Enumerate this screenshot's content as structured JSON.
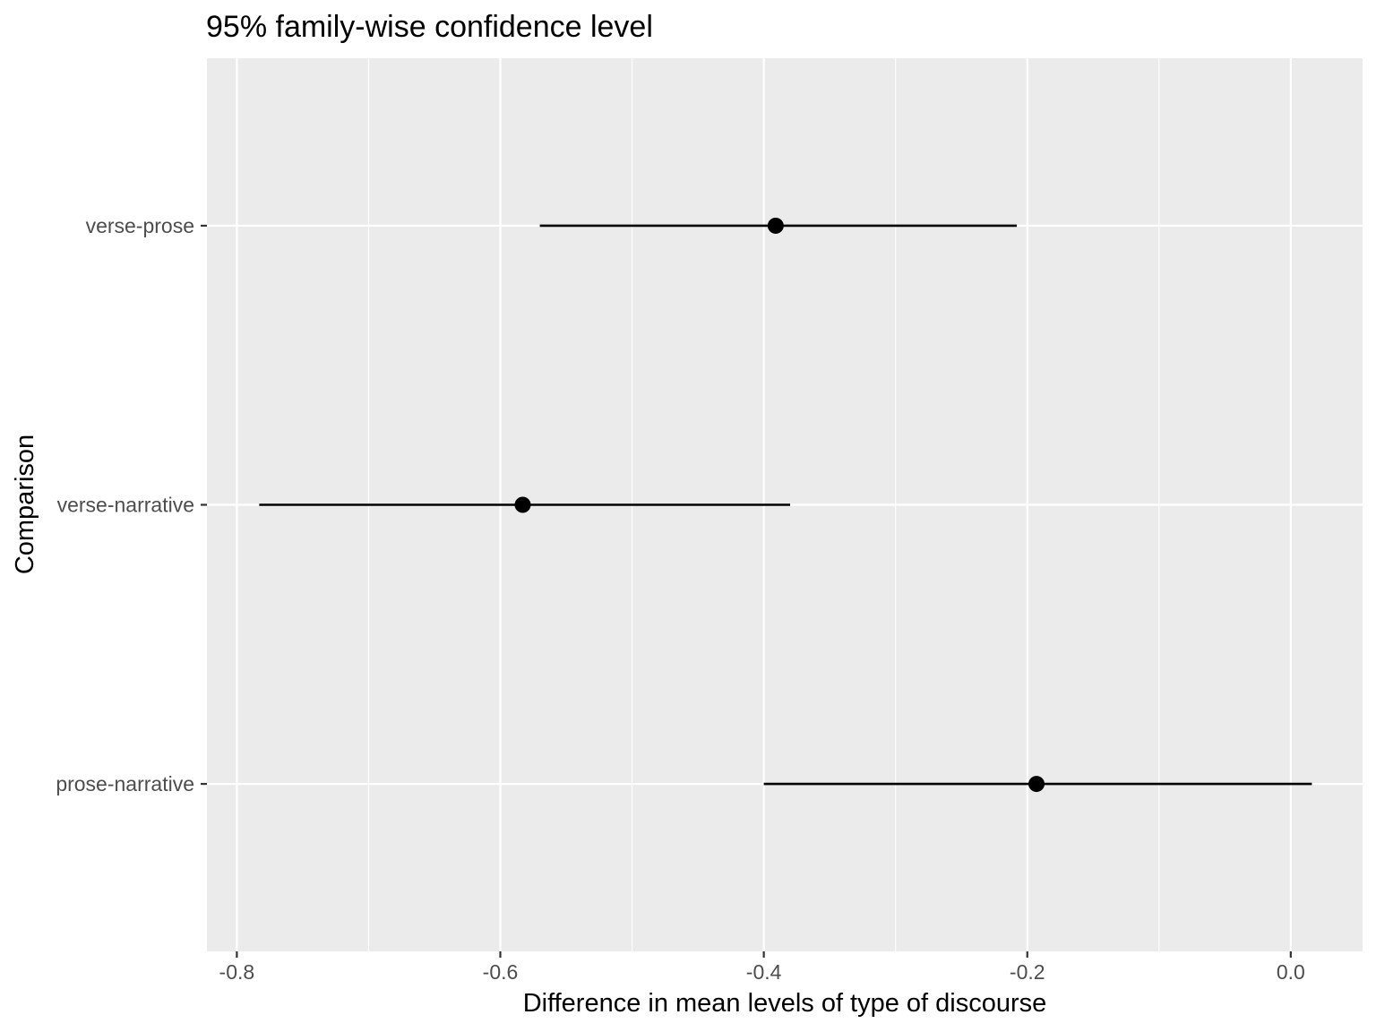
{
  "chart_data": {
    "type": "scatter",
    "title": "95% family-wise confidence level",
    "xlabel": "Difference in mean levels of type of discourse",
    "ylabel": "Comparison",
    "xlim": [
      -0.8227,
      0.0545
    ],
    "x_ticks": [
      -0.8,
      -0.6,
      -0.4,
      -0.2,
      0.0
    ],
    "x_tick_labels": [
      "-0.8",
      "-0.6",
      "-0.4",
      "-0.2",
      "0.0"
    ],
    "categories": [
      "prose-narrative",
      "verse-narrative",
      "verse-prose"
    ],
    "estimates": [
      -0.193,
      -0.583,
      -0.391
    ],
    "lower": [
      -0.4,
      -0.783,
      -0.57
    ],
    "upper": [
      0.016,
      -0.38,
      -0.208
    ],
    "grid": true,
    "colors": {
      "panel": "#ebebeb",
      "grid": "#ffffff",
      "mark": "#000000",
      "tick": "#333333"
    }
  }
}
